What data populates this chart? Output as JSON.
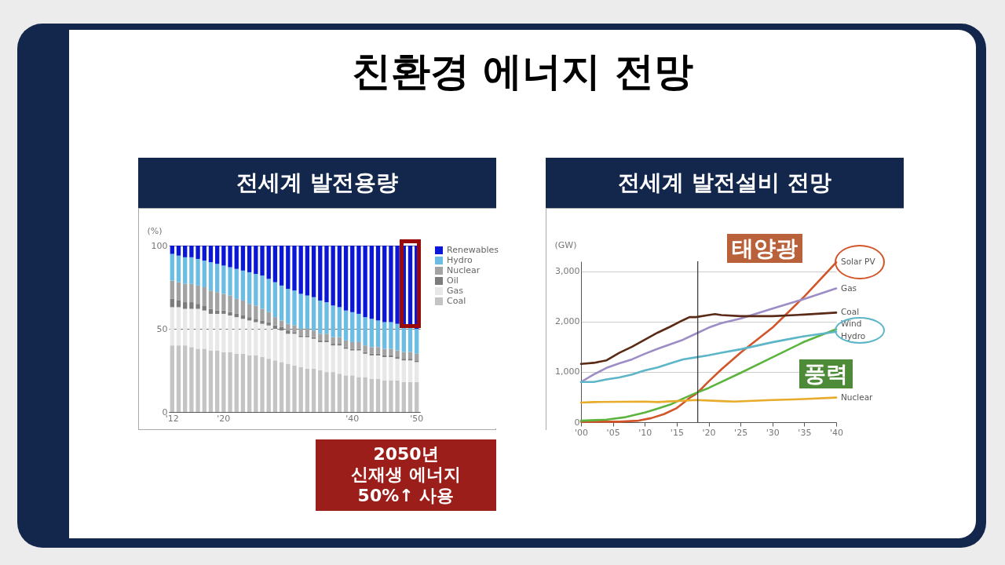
{
  "chart_data": [
    {
      "type": "bar",
      "title": "전세계 발전용량",
      "stacked": true,
      "ylabel": "(%)",
      "categories": [
        "'12",
        null,
        null,
        null,
        null,
        null,
        null,
        null,
        "'20",
        null,
        null,
        null,
        null,
        null,
        null,
        null,
        null,
        null,
        null,
        null,
        null,
        null,
        null,
        null,
        null,
        null,
        null,
        null,
        "'40",
        null,
        null,
        null,
        null,
        null,
        null,
        null,
        null,
        null,
        "'50"
      ],
      "series": [
        {
          "name": "Coal",
          "color": "#c4c4c4",
          "values": [
            40,
            40,
            40,
            39,
            38,
            38,
            37,
            37,
            36,
            36,
            35,
            35,
            34,
            34,
            33,
            32,
            31,
            30,
            29,
            28,
            27,
            26,
            26,
            25,
            24,
            24,
            23,
            22,
            22,
            21,
            21,
            20,
            20,
            19,
            19,
            19,
            18,
            18,
            18
          ]
        },
        {
          "name": "Gas",
          "color": "#e8e8e8",
          "values": [
            23,
            23,
            22,
            23,
            24,
            23,
            22,
            22,
            23,
            22,
            22,
            21,
            21,
            20,
            20,
            20,
            19,
            19,
            18,
            19,
            18,
            19,
            18,
            17,
            18,
            16,
            17,
            16,
            15,
            16,
            14,
            14,
            14,
            14,
            14,
            13,
            13,
            13,
            12
          ]
        },
        {
          "name": "Oil",
          "color": "#7c7c7c",
          "values": [
            5,
            4,
            4,
            4,
            3,
            3,
            3,
            2,
            2,
            2,
            2,
            2,
            2,
            2,
            2,
            2,
            2,
            2,
            2,
            1,
            1,
            1,
            1,
            1,
            1,
            1,
            1,
            1,
            1,
            1,
            1,
            1,
            1,
            1,
            1,
            1,
            1,
            1,
            1
          ]
        },
        {
          "name": "Nuclear",
          "color": "#a3a3a3",
          "values": [
            11,
            11,
            11,
            11,
            11,
            11,
            11,
            11,
            10,
            10,
            9,
            9,
            8,
            8,
            7,
            6,
            5,
            4,
            4,
            4,
            4,
            4,
            4,
            4,
            4,
            4,
            4,
            4,
            4,
            4,
            4,
            4,
            4,
            4,
            4,
            4,
            4,
            4,
            4
          ]
        },
        {
          "name": "Hydro",
          "color": "#6cbde4",
          "values": [
            16,
            16,
            16,
            16,
            16,
            16,
            17,
            17,
            17,
            17,
            18,
            18,
            19,
            19,
            20,
            20,
            21,
            21,
            21,
            21,
            21,
            20,
            20,
            20,
            19,
            19,
            18,
            18,
            18,
            17,
            17,
            17,
            16,
            16,
            16,
            16,
            15,
            15,
            15
          ]
        },
        {
          "name": "Renewables",
          "color": "#0a17d6",
          "values": [
            5,
            6,
            7,
            7,
            8,
            9,
            10,
            11,
            12,
            13,
            14,
            15,
            16,
            17,
            18,
            20,
            22,
            24,
            26,
            27,
            29,
            30,
            31,
            33,
            34,
            36,
            37,
            39,
            40,
            41,
            43,
            44,
            45,
            46,
            46,
            47,
            49,
            49,
            50
          ]
        }
      ],
      "ylim": [
        0,
        100
      ],
      "yticks": [
        0,
        50,
        100
      ],
      "grid": "y",
      "legend": "right",
      "annotations": [
        "친환경 에너지 전망",
        "2050년\n신재생 에너지\n50%↑ 사용"
      ]
    },
    {
      "type": "line",
      "title": "전세계 발전설비 전망",
      "ylabel": "(GW)",
      "series": [
        {
          "name": "Solar PV",
          "color": "#d2552a",
          "x": [
            2000,
            2006,
            2009,
            2011,
            2013,
            2015,
            2016,
            2017,
            2018,
            2019,
            2020,
            2022,
            2025,
            2030,
            2035,
            2040
          ],
          "values": [
            10,
            10,
            30,
            80,
            160,
            280,
            380,
            480,
            560,
            680,
            810,
            1050,
            1380,
            1880,
            2500,
            3180
          ]
        },
        {
          "name": "Gas",
          "color": "#9d8dc6",
          "x": [
            2000,
            2002,
            2004,
            2006,
            2008,
            2010,
            2012,
            2014,
            2016,
            2018,
            2020,
            2022,
            2025,
            2030,
            2035,
            2040
          ],
          "values": [
            800,
            950,
            1080,
            1170,
            1250,
            1360,
            1460,
            1550,
            1640,
            1760,
            1880,
            1970,
            2060,
            2260,
            2450,
            2660
          ]
        },
        {
          "name": "Coal",
          "color": "#5a2a16",
          "x": [
            2000,
            2002,
            2004,
            2006,
            2008,
            2010,
            2012,
            2014,
            2016,
            2017,
            2018,
            2020,
            2021,
            2022,
            2025,
            2030,
            2035,
            2040
          ],
          "values": [
            1160,
            1180,
            1230,
            1380,
            1500,
            1640,
            1780,
            1900,
            2030,
            2090,
            2090,
            2130,
            2150,
            2130,
            2110,
            2110,
            2140,
            2180
          ]
        },
        {
          "name": "Wind",
          "color": "#5cb43e",
          "x": [
            2000,
            2004,
            2007,
            2010,
            2012,
            2014,
            2016,
            2018,
            2020,
            2025,
            2030,
            2035,
            2040
          ],
          "values": [
            30,
            50,
            100,
            190,
            270,
            350,
            470,
            580,
            680,
            980,
            1290,
            1600,
            1850
          ]
        },
        {
          "name": "Hydro",
          "color": "#5cb6c8",
          "x": [
            2000,
            2002,
            2004,
            2006,
            2008,
            2010,
            2012,
            2014,
            2016,
            2018,
            2020,
            2022,
            2025,
            2030,
            2035,
            2040
          ],
          "values": [
            800,
            800,
            850,
            890,
            950,
            1030,
            1090,
            1170,
            1250,
            1290,
            1330,
            1380,
            1450,
            1590,
            1710,
            1800
          ]
        },
        {
          "name": "Nuclear",
          "color": "#e8ab2a",
          "x": [
            2000,
            2002,
            2010,
            2012,
            2018,
            2022,
            2024,
            2030,
            2035,
            2040
          ],
          "values": [
            390,
            400,
            410,
            400,
            440,
            420,
            410,
            440,
            460,
            490
          ]
        }
      ],
      "xlim": [
        2000,
        2040
      ],
      "xticks": [
        {
          "value": 2000,
          "label": "'00"
        },
        {
          "value": 2005,
          "label": "'05"
        },
        {
          "value": 2010,
          "label": "'10"
        },
        {
          "value": 2015,
          "label": "'15"
        },
        {
          "value": 2020,
          "label": "'20"
        },
        {
          "value": 2025,
          "label": "'25"
        },
        {
          "value": 2030,
          "label": "'30"
        },
        {
          "value": 2035,
          "label": "'35"
        },
        {
          "value": 2040,
          "label": "'40"
        }
      ],
      "ylim": [
        0,
        3200
      ],
      "yticks": [
        0,
        {
          "value": 1000,
          "label": "1,000"
        },
        {
          "value": 2000,
          "label": "2,000"
        },
        {
          "value": 3000,
          "label": "3,000"
        }
      ],
      "grid": "y",
      "legend": false,
      "ref_lines": [
        {
          "axis": "x",
          "value": 2018.3
        }
      ],
      "annotations": [
        "태양광",
        "풍력"
      ]
    }
  ]
}
